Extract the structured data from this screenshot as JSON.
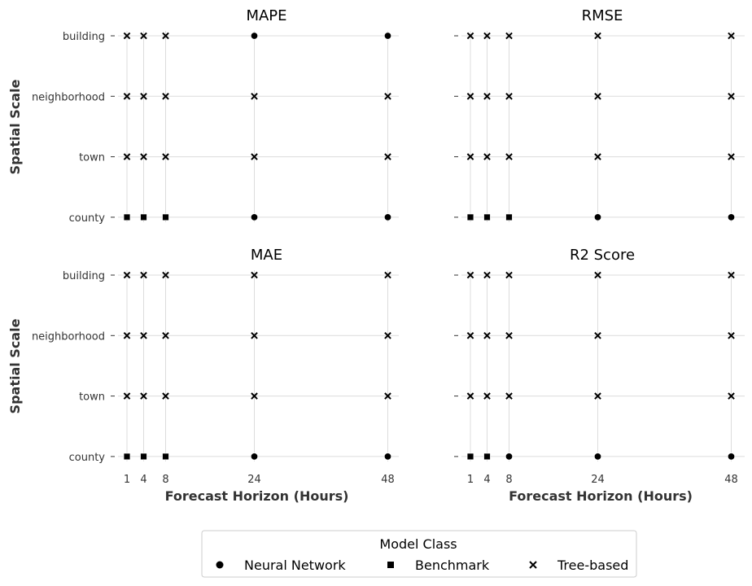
{
  "chart_data": {
    "type": "scatter",
    "ylabel": "Spatial Scale",
    "xlabel": "Forecast Horizon (Hours)",
    "x_ticks": [
      1,
      4,
      8,
      24,
      48
    ],
    "y_categories": [
      "building",
      "neighborhood",
      "town",
      "county"
    ],
    "legend": {
      "title": "Model Class",
      "placement": "bottom-center",
      "entries": [
        {
          "label": "Neural Network",
          "marker": "circle"
        },
        {
          "label": "Benchmark",
          "marker": "square"
        },
        {
          "label": "Tree-based",
          "marker": "x"
        }
      ]
    },
    "grid": true,
    "panels": [
      {
        "title": "MAPE",
        "points": [
          {
            "x": 1,
            "y": "building",
            "class": "Tree-based"
          },
          {
            "x": 4,
            "y": "building",
            "class": "Tree-based"
          },
          {
            "x": 8,
            "y": "building",
            "class": "Tree-based"
          },
          {
            "x": 24,
            "y": "building",
            "class": "Neural Network"
          },
          {
            "x": 48,
            "y": "building",
            "class": "Neural Network"
          },
          {
            "x": 1,
            "y": "neighborhood",
            "class": "Tree-based"
          },
          {
            "x": 4,
            "y": "neighborhood",
            "class": "Tree-based"
          },
          {
            "x": 8,
            "y": "neighborhood",
            "class": "Tree-based"
          },
          {
            "x": 24,
            "y": "neighborhood",
            "class": "Tree-based"
          },
          {
            "x": 48,
            "y": "neighborhood",
            "class": "Tree-based"
          },
          {
            "x": 1,
            "y": "town",
            "class": "Tree-based"
          },
          {
            "x": 4,
            "y": "town",
            "class": "Tree-based"
          },
          {
            "x": 8,
            "y": "town",
            "class": "Tree-based"
          },
          {
            "x": 24,
            "y": "town",
            "class": "Tree-based"
          },
          {
            "x": 48,
            "y": "town",
            "class": "Tree-based"
          },
          {
            "x": 1,
            "y": "county",
            "class": "Benchmark"
          },
          {
            "x": 4,
            "y": "county",
            "class": "Benchmark"
          },
          {
            "x": 8,
            "y": "county",
            "class": "Benchmark"
          },
          {
            "x": 24,
            "y": "county",
            "class": "Neural Network"
          },
          {
            "x": 48,
            "y": "county",
            "class": "Neural Network"
          }
        ]
      },
      {
        "title": "RMSE",
        "points": [
          {
            "x": 1,
            "y": "building",
            "class": "Tree-based"
          },
          {
            "x": 4,
            "y": "building",
            "class": "Tree-based"
          },
          {
            "x": 8,
            "y": "building",
            "class": "Tree-based"
          },
          {
            "x": 24,
            "y": "building",
            "class": "Tree-based"
          },
          {
            "x": 48,
            "y": "building",
            "class": "Tree-based"
          },
          {
            "x": 1,
            "y": "neighborhood",
            "class": "Tree-based"
          },
          {
            "x": 4,
            "y": "neighborhood",
            "class": "Tree-based"
          },
          {
            "x": 8,
            "y": "neighborhood",
            "class": "Tree-based"
          },
          {
            "x": 24,
            "y": "neighborhood",
            "class": "Tree-based"
          },
          {
            "x": 48,
            "y": "neighborhood",
            "class": "Tree-based"
          },
          {
            "x": 1,
            "y": "town",
            "class": "Tree-based"
          },
          {
            "x": 4,
            "y": "town",
            "class": "Tree-based"
          },
          {
            "x": 8,
            "y": "town",
            "class": "Tree-based"
          },
          {
            "x": 24,
            "y": "town",
            "class": "Tree-based"
          },
          {
            "x": 48,
            "y": "town",
            "class": "Tree-based"
          },
          {
            "x": 1,
            "y": "county",
            "class": "Benchmark"
          },
          {
            "x": 4,
            "y": "county",
            "class": "Benchmark"
          },
          {
            "x": 8,
            "y": "county",
            "class": "Benchmark"
          },
          {
            "x": 24,
            "y": "county",
            "class": "Neural Network"
          },
          {
            "x": 48,
            "y": "county",
            "class": "Neural Network"
          }
        ]
      },
      {
        "title": "MAE",
        "points": [
          {
            "x": 1,
            "y": "building",
            "class": "Tree-based"
          },
          {
            "x": 4,
            "y": "building",
            "class": "Tree-based"
          },
          {
            "x": 8,
            "y": "building",
            "class": "Tree-based"
          },
          {
            "x": 24,
            "y": "building",
            "class": "Tree-based"
          },
          {
            "x": 48,
            "y": "building",
            "class": "Tree-based"
          },
          {
            "x": 1,
            "y": "neighborhood",
            "class": "Tree-based"
          },
          {
            "x": 4,
            "y": "neighborhood",
            "class": "Tree-based"
          },
          {
            "x": 8,
            "y": "neighborhood",
            "class": "Tree-based"
          },
          {
            "x": 24,
            "y": "neighborhood",
            "class": "Tree-based"
          },
          {
            "x": 48,
            "y": "neighborhood",
            "class": "Tree-based"
          },
          {
            "x": 1,
            "y": "town",
            "class": "Tree-based"
          },
          {
            "x": 4,
            "y": "town",
            "class": "Tree-based"
          },
          {
            "x": 8,
            "y": "town",
            "class": "Tree-based"
          },
          {
            "x": 24,
            "y": "town",
            "class": "Tree-based"
          },
          {
            "x": 48,
            "y": "town",
            "class": "Tree-based"
          },
          {
            "x": 1,
            "y": "county",
            "class": "Benchmark"
          },
          {
            "x": 4,
            "y": "county",
            "class": "Benchmark"
          },
          {
            "x": 8,
            "y": "county",
            "class": "Benchmark"
          },
          {
            "x": 24,
            "y": "county",
            "class": "Neural Network"
          },
          {
            "x": 48,
            "y": "county",
            "class": "Neural Network"
          }
        ]
      },
      {
        "title": "R2 Score",
        "points": [
          {
            "x": 1,
            "y": "building",
            "class": "Tree-based"
          },
          {
            "x": 4,
            "y": "building",
            "class": "Tree-based"
          },
          {
            "x": 8,
            "y": "building",
            "class": "Tree-based"
          },
          {
            "x": 24,
            "y": "building",
            "class": "Tree-based"
          },
          {
            "x": 48,
            "y": "building",
            "class": "Tree-based"
          },
          {
            "x": 1,
            "y": "neighborhood",
            "class": "Tree-based"
          },
          {
            "x": 4,
            "y": "neighborhood",
            "class": "Tree-based"
          },
          {
            "x": 8,
            "y": "neighborhood",
            "class": "Tree-based"
          },
          {
            "x": 24,
            "y": "neighborhood",
            "class": "Tree-based"
          },
          {
            "x": 48,
            "y": "neighborhood",
            "class": "Tree-based"
          },
          {
            "x": 1,
            "y": "town",
            "class": "Tree-based"
          },
          {
            "x": 4,
            "y": "town",
            "class": "Tree-based"
          },
          {
            "x": 8,
            "y": "town",
            "class": "Tree-based"
          },
          {
            "x": 24,
            "y": "town",
            "class": "Tree-based"
          },
          {
            "x": 48,
            "y": "town",
            "class": "Tree-based"
          },
          {
            "x": 1,
            "y": "county",
            "class": "Benchmark"
          },
          {
            "x": 4,
            "y": "county",
            "class": "Benchmark"
          },
          {
            "x": 8,
            "y": "county",
            "class": "Neural Network"
          },
          {
            "x": 24,
            "y": "county",
            "class": "Neural Network"
          },
          {
            "x": 48,
            "y": "county",
            "class": "Neural Network"
          }
        ]
      }
    ]
  }
}
